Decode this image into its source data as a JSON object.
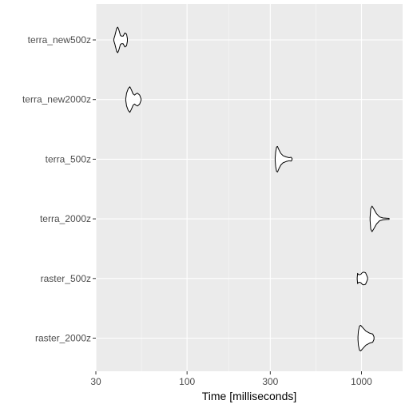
{
  "chart_data": {
    "type": "violin",
    "xlabel": "Time [milliseconds]",
    "ylabel": "",
    "x_scale": "log10",
    "xlim": [
      30,
      1500
    ],
    "x_ticks": [
      30,
      100,
      300,
      1000
    ],
    "x_tick_labels": [
      "30",
      "100",
      "300",
      "1000"
    ],
    "grid": true,
    "colors": {
      "panel_background": "#ebebeb",
      "grid_major": "#ffffff",
      "grid_minor": "#f5f5f5",
      "outline": "#000000",
      "fill": "#ffffff"
    },
    "categories": [
      "terra_new500z",
      "terra_new2000z",
      "terra_500z",
      "terra_2000z",
      "raster_500z",
      "raster_2000z"
    ],
    "series": [
      {
        "name": "terra_new500z",
        "profile": [
          [
            38,
            0.05
          ],
          [
            38.5,
            0.3
          ],
          [
            39,
            0.6
          ],
          [
            39.5,
            0.9
          ],
          [
            40,
            1.0
          ],
          [
            40.5,
            0.85
          ],
          [
            41,
            0.6
          ],
          [
            41.5,
            0.35
          ],
          [
            42,
            0.3
          ],
          [
            43,
            0.3
          ],
          [
            44,
            0.55
          ],
          [
            45,
            0.45
          ],
          [
            45.5,
            0.1
          ]
        ]
      },
      {
        "name": "terra_new2000z",
        "profile": [
          [
            44.5,
            0.05
          ],
          [
            45,
            0.5
          ],
          [
            46,
            0.85
          ],
          [
            47,
            1.0
          ],
          [
            48,
            0.75
          ],
          [
            49,
            0.45
          ],
          [
            50,
            0.35
          ],
          [
            51,
            0.45
          ],
          [
            52,
            0.5
          ],
          [
            53.5,
            0.35
          ],
          [
            54.5,
            0.05
          ]
        ]
      },
      {
        "name": "terra_500z",
        "profile": [
          [
            320,
            0.1
          ],
          [
            322,
            0.55
          ],
          [
            326,
            0.95
          ],
          [
            330,
            1.0
          ],
          [
            336,
            0.75
          ],
          [
            345,
            0.45
          ],
          [
            355,
            0.28
          ],
          [
            370,
            0.18
          ],
          [
            385,
            0.12
          ],
          [
            395,
            0.15
          ],
          [
            400,
            0.05
          ]
        ]
      },
      {
        "name": "terra_2000z",
        "profile": [
          [
            1120,
            0.1
          ],
          [
            1130,
            0.8
          ],
          [
            1150,
            1.0
          ],
          [
            1180,
            0.75
          ],
          [
            1220,
            0.4
          ],
          [
            1270,
            0.15
          ],
          [
            1330,
            0.07
          ],
          [
            1390,
            0.05
          ],
          [
            1440,
            0.04
          ]
        ]
      },
      {
        "name": "raster_500z",
        "profile": [
          [
            945,
            0.05
          ],
          [
            948,
            0.25
          ],
          [
            950,
            0.4
          ],
          [
            955,
            0.35
          ],
          [
            965,
            0.3
          ],
          [
            980,
            0.3
          ],
          [
            995,
            0.35
          ],
          [
            1010,
            0.45
          ],
          [
            1030,
            0.5
          ],
          [
            1055,
            0.45
          ],
          [
            1075,
            0.2
          ],
          [
            1085,
            0.05
          ]
        ]
      },
      {
        "name": "raster_2000z",
        "profile": [
          [
            955,
            0.1
          ],
          [
            960,
            0.55
          ],
          [
            975,
            0.95
          ],
          [
            990,
            1.0
          ],
          [
            1020,
            0.8
          ],
          [
            1060,
            0.55
          ],
          [
            1110,
            0.4
          ],
          [
            1160,
            0.32
          ],
          [
            1180,
            0.1
          ]
        ]
      }
    ]
  }
}
